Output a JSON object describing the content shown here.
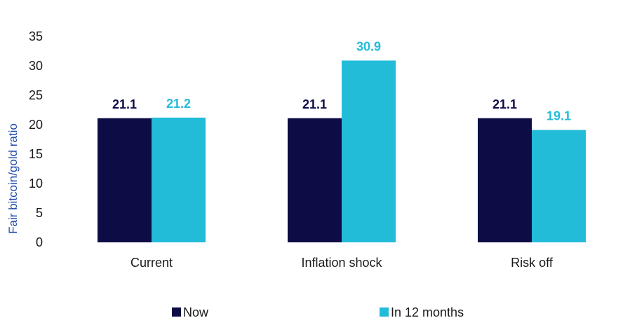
{
  "chart_data": {
    "type": "bar",
    "categories": [
      "Current",
      "Inflation shock",
      "Risk off"
    ],
    "series": [
      {
        "name": "Now",
        "values": [
          21.1,
          21.1,
          21.1
        ],
        "color": "#0d0c45",
        "label_color": "#0d0c45"
      },
      {
        "name": "In 12 months",
        "values": [
          21.2,
          30.9,
          19.1
        ],
        "color": "#22bcd9",
        "label_color": "#22bcd9"
      }
    ],
    "title": "",
    "xlabel": "",
    "ylabel": "Fair bitcoin/gold ratio",
    "ylim": [
      0,
      35
    ],
    "yticks": [
      0,
      5,
      10,
      15,
      20,
      25,
      30,
      35
    ],
    "data_labels": [
      [
        "21.1",
        "21.1",
        "21.1"
      ],
      [
        "21.2",
        "30.9",
        "19.1"
      ]
    ],
    "grid": false,
    "legend_position": "bottom"
  }
}
